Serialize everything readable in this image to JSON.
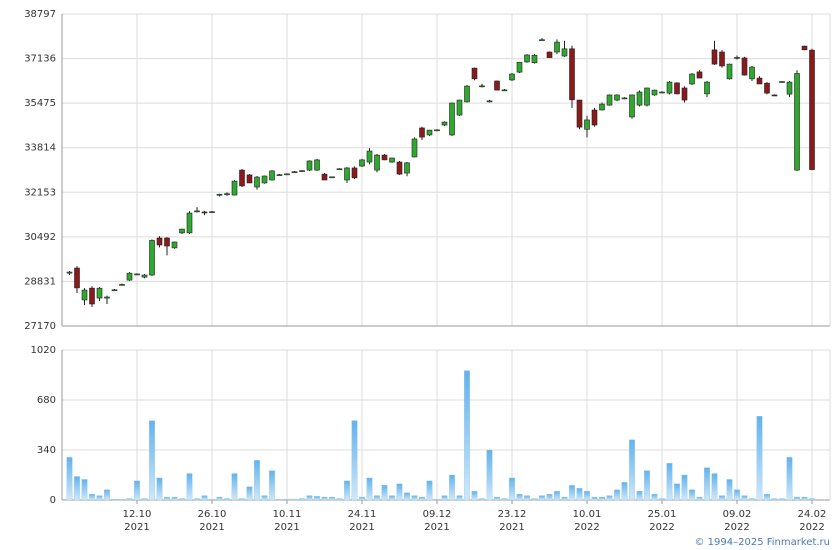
{
  "chart_data": [
    {
      "type": "candlestick",
      "up_color": "#2ea82e",
      "down_color": "#8b1a1a",
      "grid": true,
      "ylim": [
        27170,
        38797
      ],
      "yticks": [
        27170,
        28831,
        30492,
        32153,
        33814,
        35475,
        37136,
        38797
      ],
      "open": [
        29140,
        29330,
        28140,
        28580,
        28210,
        28210,
        28510,
        28700,
        28880,
        29100,
        28990,
        29070,
        30450,
        30450,
        30080,
        30640,
        30640,
        31450,
        31420,
        31420,
        32050,
        32060,
        32050,
        32980,
        32800,
        32350,
        32500,
        32610,
        32800,
        32830,
        32900,
        32940,
        32980,
        32980,
        32830,
        32720,
        33020,
        32610,
        33060,
        33130,
        33280,
        32980,
        33540,
        33280,
        33280,
        32870,
        33470,
        34550,
        34290,
        34470,
        34660,
        34290,
        35030,
        35520,
        36780,
        36110,
        35550,
        36300,
        35960,
        36340,
        36630,
        37010,
        36980,
        37830,
        37380,
        37380,
        37230,
        37500,
        35590,
        34500,
        35220,
        35220,
        35400,
        35590,
        35640,
        34960,
        35400,
        35400,
        35780,
        35870,
        35850,
        36230,
        36040,
        36190,
        36640,
        35820,
        37460,
        37380,
        36380,
        37160,
        37160,
        36380,
        36410,
        36220,
        35780,
        36260,
        35810,
        32980,
        37600,
        37450
      ],
      "high": [
        29220,
        29400,
        28580,
        28650,
        28620,
        28300,
        28550,
        28750,
        29180,
        29130,
        29110,
        30400,
        30520,
        30480,
        30320,
        30800,
        31450,
        31600,
        31460,
        31450,
        32100,
        32150,
        32600,
        33020,
        32830,
        32760,
        32780,
        32980,
        32830,
        32860,
        32940,
        32980,
        33340,
        33400,
        32870,
        32740,
        33050,
        33090,
        33120,
        33400,
        33800,
        33580,
        33580,
        33450,
        33320,
        33280,
        34200,
        34600,
        34480,
        34500,
        34800,
        35500,
        35600,
        36150,
        36800,
        36200,
        35600,
        36320,
        36000,
        36600,
        37010,
        37300,
        37300,
        37900,
        37400,
        37850,
        37800,
        37620,
        35600,
        35000,
        35300,
        35500,
        35800,
        35800,
        35700,
        35800,
        35950,
        36050,
        35980,
        35920,
        36300,
        36250,
        36100,
        36600,
        36700,
        36300,
        37800,
        37450,
        36950,
        37250,
        37200,
        36860,
        36480,
        36260,
        35800,
        36300,
        36300,
        36700,
        37620,
        37500
      ],
      "low": [
        29070,
        28400,
        27950,
        27880,
        28100,
        27990,
        28480,
        28680,
        28850,
        29070,
        28950,
        29040,
        30100,
        29800,
        30050,
        30600,
        30600,
        31400,
        31300,
        31380,
        32000,
        32020,
        32040,
        32350,
        32500,
        32250,
        32470,
        32590,
        32780,
        32810,
        32880,
        32920,
        32940,
        32950,
        32610,
        32700,
        33000,
        32500,
        32650,
        33100,
        33200,
        32900,
        33350,
        33250,
        32800,
        32750,
        33450,
        34100,
        34250,
        34450,
        34620,
        34250,
        35000,
        35500,
        36330,
        36060,
        35500,
        35960,
        35930,
        36300,
        36600,
        36980,
        36950,
        37800,
        37160,
        37300,
        37200,
        35300,
        34500,
        34200,
        34600,
        35200,
        35380,
        35550,
        35620,
        34900,
        35350,
        35350,
        35750,
        35850,
        35800,
        35800,
        35500,
        36150,
        36400,
        35700,
        36900,
        36800,
        36350,
        37100,
        36500,
        36300,
        36190,
        35800,
        35740,
        36240,
        35700,
        32950,
        37450,
        32980
      ],
      "close": [
        29180,
        28590,
        28510,
        27990,
        28580,
        28250,
        28520,
        28720,
        29140,
        29110,
        29070,
        30360,
        30190,
        30150,
        30300,
        30780,
        31380,
        31460,
        31410,
        31430,
        32080,
        32100,
        32570,
        32390,
        32500,
        32720,
        32760,
        32950,
        32810,
        32840,
        32920,
        32960,
        33320,
        33360,
        32610,
        32730,
        33030,
        33060,
        32690,
        33360,
        33690,
        33540,
        33360,
        33430,
        32830,
        33250,
        34140,
        34210,
        34470,
        34480,
        34770,
        35480,
        35590,
        36110,
        36380,
        36120,
        35560,
        35960,
        35970,
        36560,
        37000,
        37270,
        37260,
        37840,
        37170,
        37750,
        37500,
        35600,
        34580,
        34850,
        34660,
        35440,
        35780,
        35780,
        35670,
        35780,
        35890,
        36040,
        35960,
        35890,
        36260,
        35820,
        35590,
        36560,
        36410,
        36260,
        36930,
        36860,
        36930,
        37180,
        36520,
        36820,
        36190,
        35850,
        35770,
        36280,
        36260,
        36580,
        37460,
        33000
      ]
    },
    {
      "type": "bar",
      "color": "#8cc8f0",
      "grid": true,
      "ylim": [
        0,
        1020
      ],
      "yticks": [
        0,
        340,
        680,
        1020
      ],
      "categories": [
        null,
        null,
        null,
        null,
        null,
        null,
        null,
        null,
        null,
        "12.10",
        null,
        null,
        null,
        null,
        null,
        null,
        null,
        null,
        null,
        "26.10",
        null,
        null,
        null,
        null,
        null,
        null,
        null,
        null,
        null,
        "10.11",
        null,
        null,
        null,
        null,
        null,
        null,
        null,
        null,
        null,
        "24.11",
        null,
        null,
        null,
        null,
        null,
        null,
        null,
        null,
        null,
        "09.12",
        null,
        null,
        null,
        null,
        null,
        null,
        null,
        null,
        null,
        "23.12",
        null,
        null,
        null,
        null,
        null,
        null,
        null,
        null,
        null,
        "10.01",
        null,
        null,
        null,
        null,
        null,
        null,
        null,
        null,
        null,
        "25.01",
        null,
        null,
        null,
        null,
        null,
        null,
        null,
        null,
        null,
        "09.02",
        null,
        null,
        null,
        null,
        null,
        null,
        null,
        null,
        null,
        "24.02"
      ],
      "category_years": [
        null,
        null,
        null,
        null,
        null,
        null,
        null,
        null,
        null,
        "2021",
        null,
        null,
        null,
        null,
        null,
        null,
        null,
        null,
        null,
        "2021",
        null,
        null,
        null,
        null,
        null,
        null,
        null,
        null,
        null,
        "2021",
        null,
        null,
        null,
        null,
        null,
        null,
        null,
        null,
        null,
        "2021",
        null,
        null,
        null,
        null,
        null,
        null,
        null,
        null,
        null,
        "2021",
        null,
        null,
        null,
        null,
        null,
        null,
        null,
        null,
        null,
        "2021",
        null,
        null,
        null,
        null,
        null,
        null,
        null,
        null,
        null,
        "2022",
        null,
        null,
        null,
        null,
        null,
        null,
        null,
        null,
        null,
        "2022",
        null,
        null,
        null,
        null,
        null,
        null,
        null,
        null,
        null,
        "2022",
        null,
        null,
        null,
        null,
        null,
        null,
        null,
        null,
        null,
        "2022"
      ],
      "values": [
        290,
        160,
        140,
        40,
        30,
        70,
        5,
        5,
        10,
        130,
        10,
        540,
        150,
        20,
        20,
        10,
        180,
        10,
        30,
        5,
        20,
        10,
        180,
        10,
        90,
        270,
        30,
        200,
        5,
        5,
        5,
        10,
        30,
        25,
        20,
        20,
        10,
        130,
        540,
        20,
        150,
        30,
        100,
        30,
        110,
        50,
        30,
        20,
        130,
        5,
        30,
        170,
        30,
        880,
        60,
        10,
        340,
        20,
        10,
        150,
        40,
        30,
        10,
        30,
        40,
        60,
        20,
        100,
        80,
        60,
        20,
        20,
        30,
        70,
        120,
        410,
        60,
        200,
        40,
        10,
        250,
        110,
        170,
        70,
        20,
        220,
        180,
        30,
        140,
        70,
        30,
        10,
        570,
        40,
        10,
        10,
        290,
        20,
        20,
        10
      ]
    }
  ],
  "footer": "© 1994–2025 Finmarket.ru"
}
